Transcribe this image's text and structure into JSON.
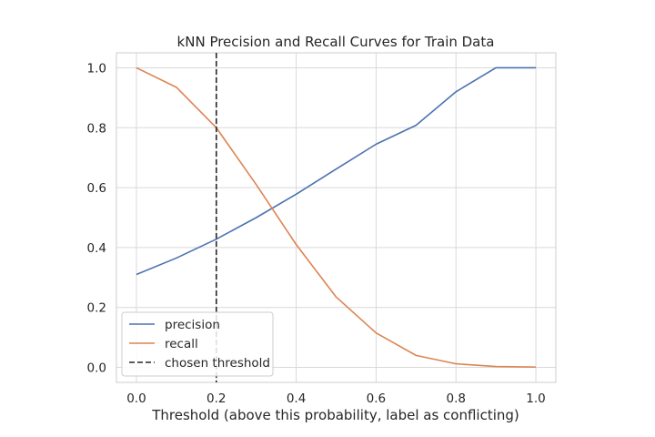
{
  "chart_data": {
    "type": "line",
    "title": "kNN Precision and Recall Curves for Train Data",
    "xlabel": "Threshold (above this probability, label as conflicting)",
    "ylabel": "",
    "xlim": [
      -0.05,
      1.05
    ],
    "ylim": [
      -0.05,
      1.05
    ],
    "x": [
      0.0,
      0.1,
      0.2,
      0.3,
      0.4,
      0.5,
      0.6,
      0.7,
      0.8,
      0.9,
      1.0
    ],
    "xticks": [
      "0.0",
      "0.2",
      "0.4",
      "0.6",
      "0.8",
      "1.0"
    ],
    "yticks": [
      "0.0",
      "0.2",
      "0.4",
      "0.6",
      "0.8",
      "1.0"
    ],
    "grid": true,
    "legend": "lower-left",
    "series": [
      {
        "name": "precision",
        "color": "#4c72b0",
        "values": [
          0.31,
          0.365,
          0.428,
          0.5,
          0.578,
          0.662,
          0.745,
          0.808,
          0.92,
          1.0,
          1.0
        ]
      },
      {
        "name": "recall",
        "color": "#dd8452",
        "values": [
          1.0,
          0.935,
          0.8,
          0.61,
          0.41,
          0.235,
          0.115,
          0.04,
          0.012,
          0.003,
          0.001
        ]
      }
    ],
    "threshold": {
      "name": "chosen threshold",
      "x": 0.2,
      "color": "#262626",
      "style": "dashed"
    }
  }
}
